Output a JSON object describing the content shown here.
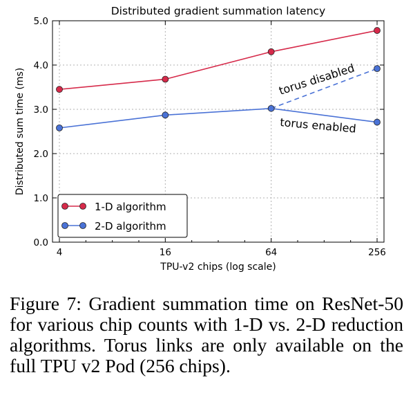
{
  "chart_data": {
    "type": "line",
    "title": "Distributed gradient summation latency",
    "xlabel": "TPU-v2 chips (log scale)",
    "ylabel": "Distributed sum time (ms)",
    "x_scale": "log",
    "x": [
      4,
      16,
      64,
      256
    ],
    "x_tick_labels": [
      "4",
      "16",
      "64",
      "256"
    ],
    "y_ticks": [
      0.0,
      1.0,
      2.0,
      3.0,
      4.0,
      5.0
    ],
    "y_tick_labels": [
      "0.0",
      "1.0",
      "2.0",
      "3.0",
      "4.0",
      "5.0"
    ],
    "ylim": [
      0.0,
      5.0
    ],
    "grid": true,
    "legend_position": "bottom-left",
    "series": [
      {
        "name": "1-D algorithm",
        "color": "#d62a4a",
        "values": [
          3.45,
          3.68,
          4.3,
          4.78
        ]
      },
      {
        "name": "2-D algorithm",
        "color": "#4a72d6",
        "values": [
          2.58,
          2.87,
          3.02,
          2.71
        ]
      }
    ],
    "extra_lines": [
      {
        "label": "torus disabled",
        "style": "dashed",
        "color": "#4a72d6",
        "x": [
          64,
          256
        ],
        "values": [
          3.02,
          3.92
        ]
      }
    ],
    "annotations": [
      {
        "text": "torus disabled",
        "color": "#4a72d6"
      },
      {
        "text": "torus enabled",
        "color": "#4a72d6"
      }
    ]
  },
  "caption": "Figure 7: Gradient summation time on ResNet-50 for various chip counts with 1-D vs. 2-D reduction algorithms. Torus links are only available on the full TPU v2 Pod (256 chips)."
}
